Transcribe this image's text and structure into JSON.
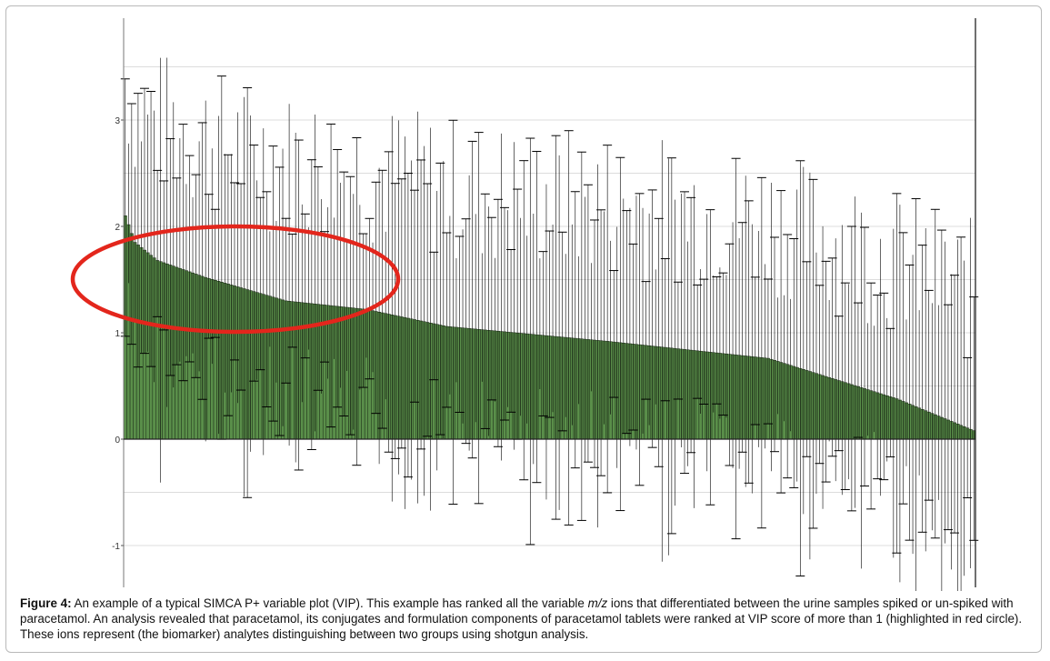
{
  "chart_data": {
    "type": "bar",
    "title": "",
    "xlabel": "",
    "ylabel": "",
    "yticks": [
      "3",
      "2",
      "1",
      "0",
      "-1"
    ],
    "ytick_values": [
      3,
      2,
      1,
      0,
      -1
    ],
    "ylim": [
      -1.4,
      3.9
    ],
    "grid": true,
    "legend": "none",
    "bar_color": "#5a8f4a",
    "errorbar_color": "#000000",
    "highlight_color": "#e3261c",
    "n_variables": 265,
    "vip_profile": {
      "description_points_rank": [
        0,
        3,
        10,
        25,
        50,
        75,
        100,
        150,
        200,
        240,
        264
      ],
      "description_points_vip": [
        2.1,
        1.85,
        1.68,
        1.52,
        1.3,
        1.22,
        1.06,
        0.92,
        0.76,
        0.38,
        0.08
      ]
    },
    "highlight_region": {
      "label_meaning": "VIP score more than 1",
      "threshold": 1
    }
  },
  "caption": {
    "label": "Figure 4:",
    "text_before": " An example of a typical SIMCA P+ variable plot (VIP). This example has ranked all the variable ",
    "italic": "m/z",
    "text_after": " ions that differentiated between the urine samples spiked or un-spiked with paracetamol. An analysis revealed that paracetamol, its conjugates and formulation components of paracetamol tablets were ranked at VIP score of more than 1 (highlighted in red circle). These ions represent (the biomarker) analytes distinguishing between two groups using shotgun analysis."
  }
}
